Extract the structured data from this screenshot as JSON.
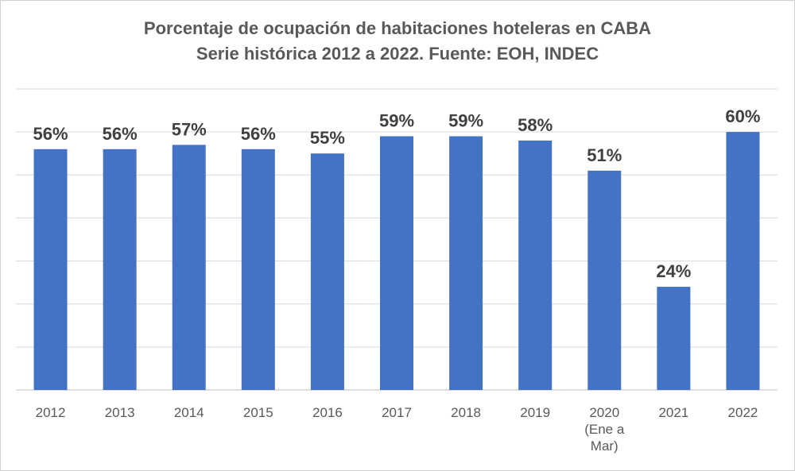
{
  "chart_data": {
    "type": "bar",
    "title": "Porcentaje de ocupación de habitaciones hoteleras en CABA",
    "subtitle": "Serie histórica 2012 a 2022. Fuente: EOH, INDEC",
    "categories": [
      [
        "2012"
      ],
      [
        "2013"
      ],
      [
        "2014"
      ],
      [
        "2015"
      ],
      [
        "2016"
      ],
      [
        "2017"
      ],
      [
        "2018"
      ],
      [
        "2019"
      ],
      [
        "2020",
        "(Ene a",
        "Mar)"
      ],
      [
        "2021"
      ],
      [
        "2022"
      ]
    ],
    "values": [
      56,
      56,
      57,
      56,
      55,
      59,
      59,
      58,
      51,
      24,
      60
    ],
    "data_labels": [
      "56%",
      "56%",
      "57%",
      "56%",
      "55%",
      "59%",
      "59%",
      "58%",
      "51%",
      "24%",
      "60%"
    ],
    "ylim": [
      0,
      70
    ],
    "grid": true,
    "bar_color": "#4472c4",
    "grid_color": "#d9d9d9"
  }
}
